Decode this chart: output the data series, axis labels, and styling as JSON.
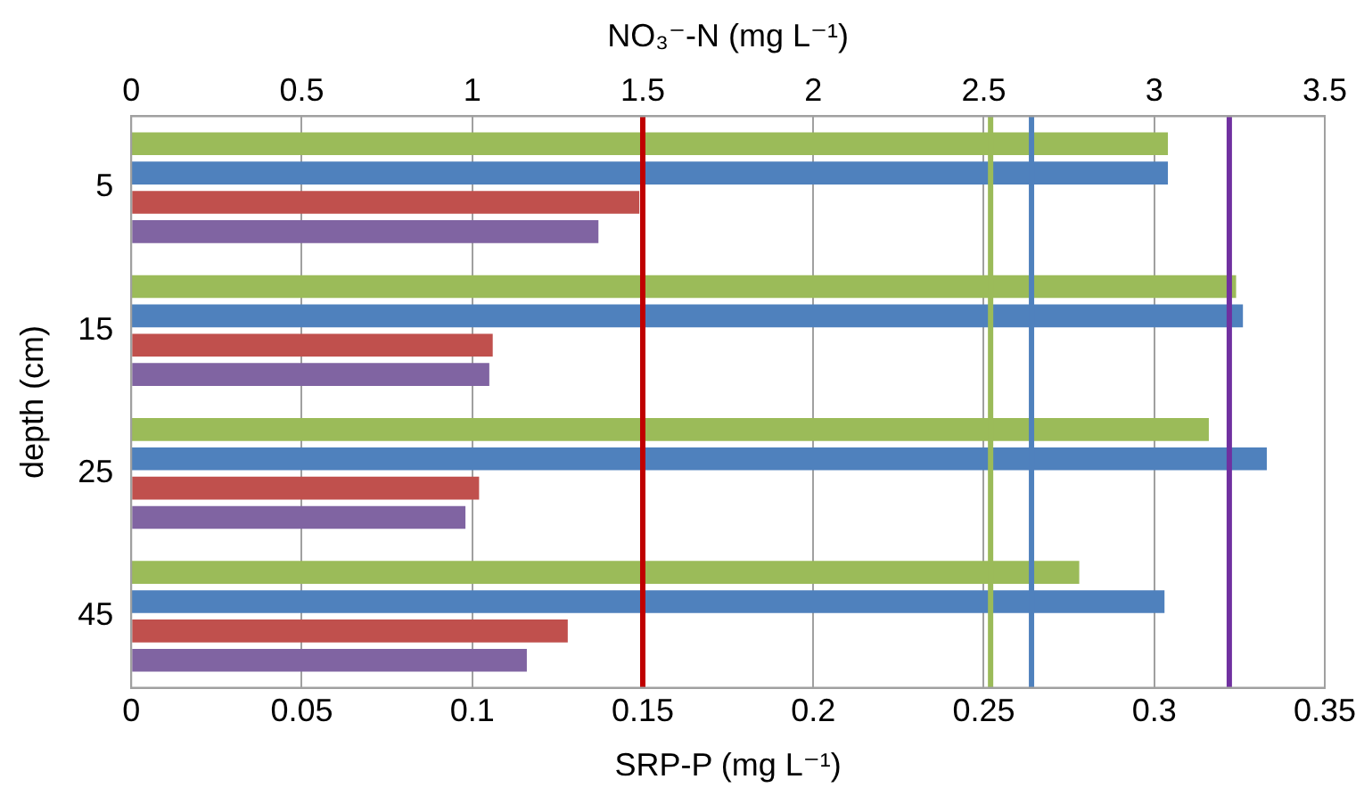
{
  "chart_data": {
    "type": "bar",
    "orientation": "horizontal",
    "xlabel": "SRP-P (mg L⁻¹)",
    "ylabel": "depth (cm)",
    "x2label": "NO₃⁻-N (mg L⁻¹)",
    "categories": [
      "5",
      "15",
      "25",
      "45"
    ],
    "series": [
      {
        "color": "#9bbb59",
        "axis": "x2",
        "values": [
          3.04,
          3.24,
          3.16,
          2.78
        ]
      },
      {
        "color": "#4f81bd",
        "axis": "x2",
        "values": [
          3.04,
          3.26,
          3.33,
          3.03
        ]
      },
      {
        "color": "#c0504d",
        "values": [
          0.149,
          0.106,
          0.102,
          0.128
        ]
      },
      {
        "color": "#8064a2",
        "values": [
          0.137,
          0.105,
          0.098,
          0.116
        ]
      }
    ],
    "xlim": [
      0,
      0.35
    ],
    "xticks": [
      0,
      0.05,
      0.1,
      0.15,
      0.2,
      0.25,
      0.3,
      0.35
    ],
    "x2lim": [
      0,
      3.5
    ],
    "x2ticks": [
      0,
      0.5,
      1,
      1.5,
      2,
      2.5,
      3,
      3.5
    ],
    "ref_lines": [
      {
        "axis": "x",
        "value": 0.15,
        "color": "#c00000"
      },
      {
        "axis": "x2",
        "value": 2.52,
        "color": "#9bbb59"
      },
      {
        "axis": "x2",
        "value": 2.64,
        "color": "#4f81bd"
      },
      {
        "axis": "x2",
        "value": 3.22,
        "color": "#7030a0"
      }
    ],
    "grid": "x"
  }
}
